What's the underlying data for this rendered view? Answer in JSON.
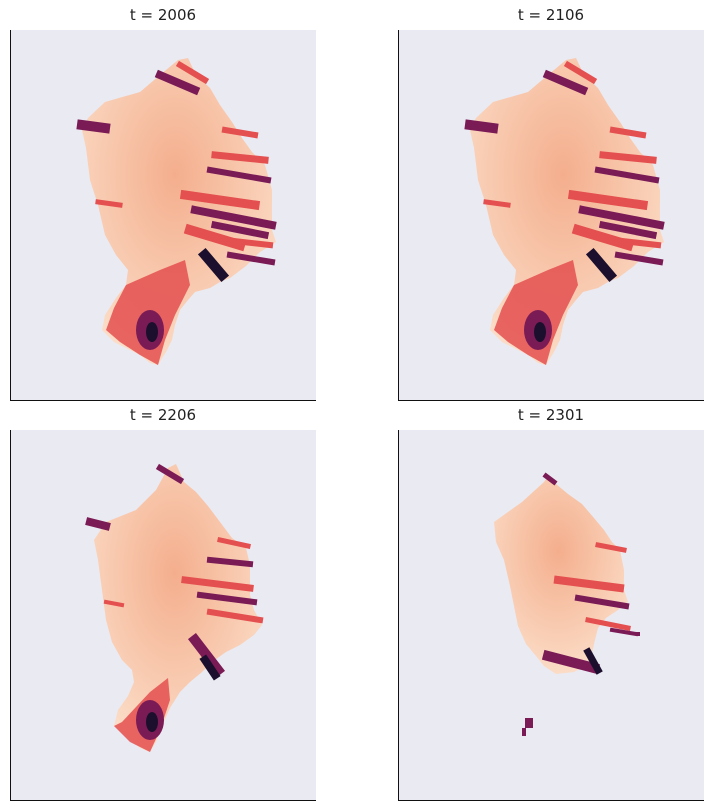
{
  "chart_data": [
    {
      "type": "heatmap",
      "title": "t = 2006",
      "grid": false,
      "xlabel": "",
      "ylabel": ""
    },
    {
      "type": "heatmap",
      "title": "t = 2106",
      "grid": false,
      "xlabel": "",
      "ylabel": ""
    },
    {
      "type": "heatmap",
      "title": "t = 2206",
      "grid": false,
      "xlabel": "",
      "ylabel": ""
    },
    {
      "type": "heatmap",
      "title": "t = 2301",
      "grid": false,
      "xlabel": "",
      "ylabel": ""
    }
  ],
  "colors": {
    "axes_background": "#eaeaf2",
    "ice_interior": "#f4ae8d",
    "ice_margin": "#fbdcc6",
    "outlet_mid": "#e44f4f",
    "outlet_dark": "#7a1b56",
    "outlet_darkest": "#1c0f2e"
  },
  "colormap": "rocket"
}
